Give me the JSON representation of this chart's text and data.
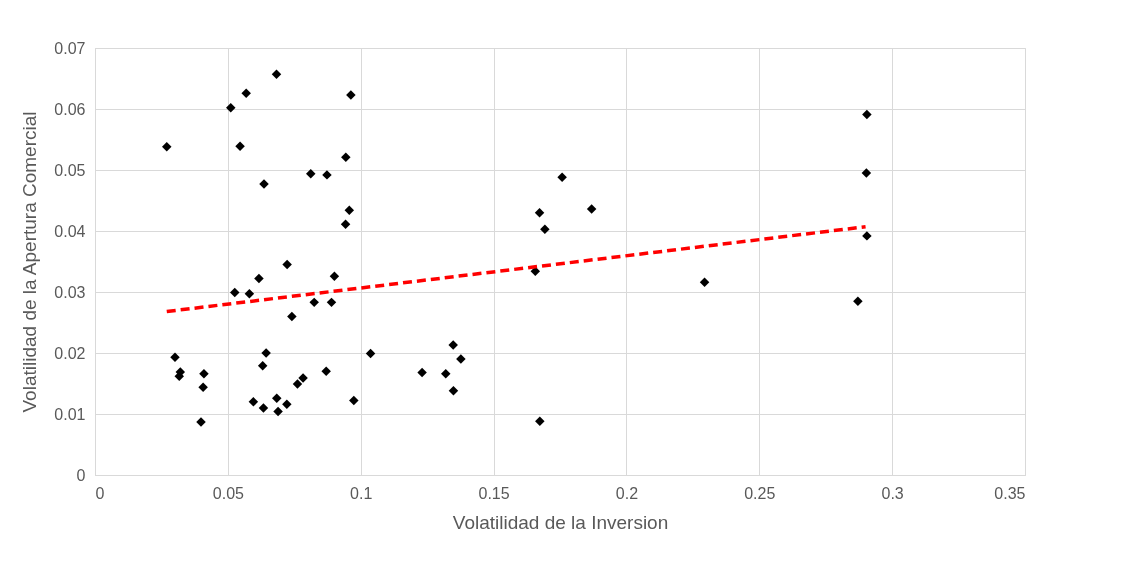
{
  "chart_data": {
    "type": "scatter",
    "xlabel": "Volatilidad de la Inversion",
    "ylabel": "Volatilidad de la Apertura Comercial",
    "xlim": [
      0,
      0.35
    ],
    "xticks": [
      0,
      0.05,
      0.1,
      0.15,
      0.2,
      0.25,
      0.3,
      0.35
    ],
    "ylim": [
      0,
      0.07
    ],
    "yticks": [
      0,
      0.01,
      0.02,
      0.03,
      0.04,
      0.05,
      0.06,
      0.07
    ],
    "grid": true,
    "series": [
      {
        "type": "scatter",
        "color": "#000000",
        "marker": "diamond",
        "x": [
          0.027,
          0.0511,
          0.0569,
          0.0683,
          0.0963,
          0.0546,
          0.0944,
          0.0812,
          0.0873,
          0.0636,
          0.0957,
          0.0943,
          0.0723,
          0.0901,
          0.0617,
          0.0526,
          0.0581,
          0.0825,
          0.089,
          0.0741,
          0.0301,
          0.0644,
          0.1037,
          0.0631,
          0.0321,
          0.0317,
          0.041,
          0.0407,
          0.087,
          0.1231,
          0.0783,
          0.0762,
          0.0684,
          0.0722,
          0.0596,
          0.0634,
          0.0689,
          0.0974,
          0.0399,
          0.1758,
          0.1869,
          0.1673,
          0.1693,
          0.1657,
          0.2294,
          0.1348,
          0.1377,
          0.132,
          0.1349,
          0.1674,
          0.2905,
          0.2903,
          0.2905,
          0.2871
        ],
        "values": [
          0.0538,
          0.0602,
          0.0626,
          0.0657,
          0.0623,
          0.0539,
          0.0521,
          0.0494,
          0.0492,
          0.0477,
          0.0434,
          0.0411,
          0.0345,
          0.0326,
          0.0322,
          0.0299,
          0.0297,
          0.0283,
          0.0283,
          0.026,
          0.0193,
          0.02,
          0.0199,
          0.0179,
          0.0169,
          0.0162,
          0.0166,
          0.0144,
          0.017,
          0.0168,
          0.0159,
          0.0149,
          0.0126,
          0.0116,
          0.012,
          0.011,
          0.0104,
          0.0122,
          0.0087,
          0.0488,
          0.0436,
          0.043,
          0.0403,
          0.0334,
          0.0316,
          0.0213,
          0.019,
          0.0166,
          0.0138,
          0.0088,
          0.0591,
          0.0495,
          0.0392,
          0.0285
        ]
      },
      {
        "type": "line",
        "color": "#ff0000",
        "line_style": "dashed",
        "marker": "none",
        "x": [
          0.027,
          0.29
        ],
        "values": [
          0.0268,
          0.0407
        ]
      }
    ]
  }
}
